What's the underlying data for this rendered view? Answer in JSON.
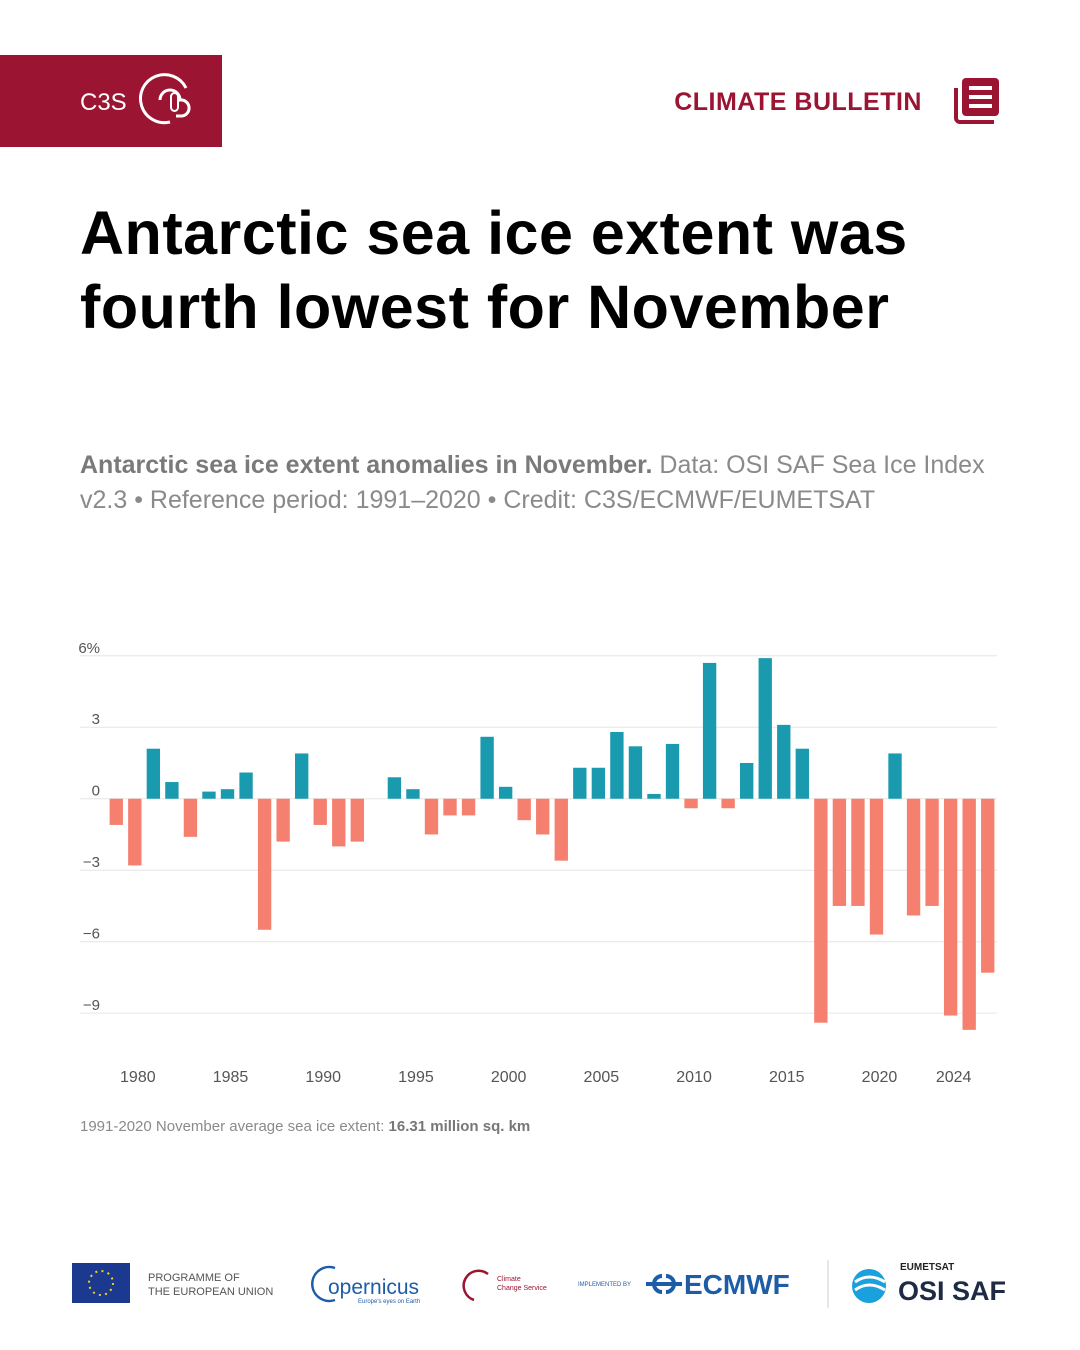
{
  "header": {
    "brand": "C3S",
    "bulletin": "CLIMATE BULLETIN"
  },
  "chart_data": {
    "type": "bar",
    "title": "Antarctic sea ice extent was fourth lowest for November",
    "subtitle_bold": "Antarctic sea ice extent anomalies in November.",
    "subtitle": "Data: OSI SAF Sea Ice Index v2.3 • Reference period: 1991–2020 • Credit: C3S/ECMWF/EUMETSAT",
    "categories": [
      null,
      "1980",
      null,
      null,
      null,
      null,
      "1985",
      null,
      null,
      null,
      null,
      "1990",
      null,
      null,
      null,
      null,
      "1995",
      null,
      null,
      null,
      null,
      "2000",
      null,
      null,
      null,
      null,
      "2005",
      null,
      null,
      null,
      null,
      "2010",
      null,
      null,
      null,
      null,
      "2015",
      null,
      null,
      null,
      null,
      "2020",
      null,
      null,
      null,
      "2024",
      null,
      null
    ],
    "values": [
      -1.1,
      -2.8,
      2.1,
      0.7,
      -1.6,
      0.3,
      0.4,
      1.1,
      -5.5,
      -1.8,
      1.9,
      -1.1,
      -2.0,
      -1.8,
      0,
      0.9,
      0.4,
      -1.5,
      -0.7,
      -0.7,
      2.6,
      0.5,
      -0.9,
      -1.5,
      -2.6,
      1.3,
      1.3,
      2.8,
      2.2,
      0.2,
      2.3,
      -0.4,
      5.7,
      -0.4,
      1.5,
      5.9,
      3.1,
      2.1,
      -9.4,
      -4.5,
      -4.5,
      -5.7,
      1.9,
      -4.9,
      -4.5,
      -9.1,
      -9.7,
      -7.3
    ],
    "positive_color": "#1a9aae",
    "negative_color": "#f5806f",
    "ylim": [
      -10,
      6.2
    ],
    "yticks": [
      {
        "value": 6,
        "label": "6%"
      },
      3,
      0,
      {
        "value": -3,
        "label": "−3"
      },
      {
        "value": -6,
        "label": "−6"
      },
      {
        "value": -9,
        "label": "−9"
      }
    ],
    "grid": true,
    "footnote": "1991-2020 November average sea ice extent:",
    "footnote_bold": "16.31 million sq. km"
  },
  "footer": {
    "eu": "PROGRAMME OF",
    "eu2": "THE EUROPEAN UNION",
    "copernicus": "opernicus",
    "copernicus_tag": "Europe's eyes on Earth",
    "c3s1": "Climate",
    "c3s2": "Change Service",
    "implemented": "IMPLEMENTED BY",
    "ecmwf": "ECMWF",
    "eumetsat": "EUMETSAT",
    "osisaf": "OSI SAF"
  }
}
